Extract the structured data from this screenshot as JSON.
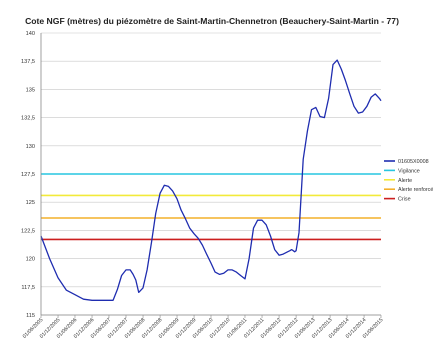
{
  "chart_data": {
    "type": "line",
    "title": "Cote NGF (mètres) du piézomètre de Saint-Martin-Chennetron (Beauchery-Saint-Martin - 77)",
    "xlabel": "",
    "ylabel": "",
    "ylim": [
      115,
      140
    ],
    "y_ticks": [
      "115",
      "117,5",
      "120",
      "122,5",
      "125",
      "127,5",
      "130",
      "132,5",
      "135",
      "137,5",
      "140"
    ],
    "x_ticks": [
      "01/06/2005",
      "01/12/2005",
      "01/06/2006",
      "01/12/2006",
      "01/06/2007",
      "01/12/2007",
      "01/06/2008",
      "01/12/2008",
      "01/06/2009",
      "01/12/2009",
      "01/06/2010",
      "01/12/2010",
      "01/06/2011",
      "01/12/2011",
      "01/06/2012",
      "01/12/2012",
      "01/06/2013",
      "01/12/2013",
      "01/06/2014",
      "01/12/2014",
      "01/06/2015"
    ],
    "grid": "horizontal",
    "legend_position": "right",
    "series": [
      {
        "name": "01605X0008",
        "color": "#1f2db0",
        "x": [
          "2005-06-01",
          "2005-09-01",
          "2005-12-01",
          "2006-03-01",
          "2006-06-01",
          "2006-09-01",
          "2006-12-01",
          "2007-02-01",
          "2007-04-01",
          "2007-06-01",
          "2007-07-15",
          "2007-09-01",
          "2007-10-15",
          "2007-12-01",
          "2008-01-15",
          "2008-02-15",
          "2008-03-15",
          "2008-04-15",
          "2008-06-01",
          "2008-07-15",
          "2008-09-01",
          "2008-10-15",
          "2008-12-01",
          "2009-01-15",
          "2009-03-01",
          "2009-04-15",
          "2009-06-01",
          "2009-07-15",
          "2009-09-01",
          "2009-10-15",
          "2009-12-01",
          "2010-01-15",
          "2010-03-01",
          "2010-04-15",
          "2010-06-01",
          "2010-07-15",
          "2010-09-01",
          "2010-10-15",
          "2010-12-01",
          "2011-01-15",
          "2011-03-01",
          "2011-04-15",
          "2011-06-01",
          "2011-07-15",
          "2011-09-01",
          "2011-10-15",
          "2011-12-01",
          "2012-01-15",
          "2012-03-01",
          "2012-04-15",
          "2012-06-01",
          "2012-07-15",
          "2012-09-01",
          "2012-09-25",
          "2012-10-15",
          "2012-11-01",
          "2012-11-15",
          "2012-12-01",
          "2013-01-01",
          "2013-02-15",
          "2013-04-01",
          "2013-05-15",
          "2013-07-01",
          "2013-08-15",
          "2013-10-01",
          "2013-11-15",
          "2014-01-01",
          "2014-02-15",
          "2014-04-01",
          "2014-05-15",
          "2014-07-01",
          "2014-08-15",
          "2014-10-01",
          "2014-11-15",
          "2015-01-01",
          "2015-02-15",
          "2015-04-01",
          "2015-05-15",
          "2015-06-01"
        ],
        "values": [
          122,
          120,
          118.3,
          117.2,
          116.8,
          116.4,
          116.3,
          116.3,
          116.3,
          116.3,
          116.3,
          117.3,
          118.5,
          119,
          119,
          118.6,
          118.1,
          117,
          117.4,
          119,
          121.5,
          124,
          125.8,
          126.5,
          126.4,
          126,
          125.3,
          124.3,
          123.5,
          122.7,
          122.2,
          121.8,
          121.2,
          120.4,
          119.6,
          118.8,
          118.6,
          118.7,
          119,
          119,
          118.8,
          118.5,
          118.2,
          120,
          122.7,
          123.4,
          123.4,
          123,
          122,
          120.8,
          120.3,
          120.4,
          120.6,
          120.7,
          120.8,
          120.7,
          120.6,
          120.7,
          122.3,
          128.8,
          131.3,
          133.2,
          133.4,
          132.6,
          132.5,
          134.2,
          137.2,
          137.6,
          136.8,
          135.8,
          134.6,
          133.5,
          132.9,
          133,
          133.5,
          134.3,
          134.6,
          134.2,
          134
        ]
      },
      {
        "name": "Vigilance",
        "color": "#27c6e0",
        "value": 127.5
      },
      {
        "name": "Alerte",
        "color": "#f2ea3a",
        "value": 125.6
      },
      {
        "name": "Alerte renforcé",
        "color": "#f3b02a",
        "value": 123.6
      },
      {
        "name": "Crise",
        "color": "#cc1f1f",
        "value": 121.7
      }
    ]
  }
}
